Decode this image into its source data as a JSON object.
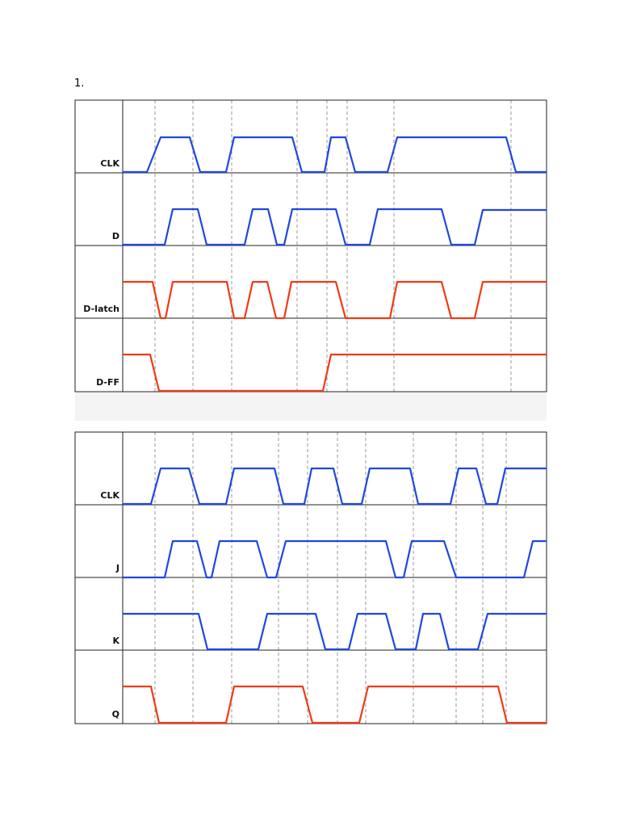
{
  "heading": "1.",
  "diagrams": [
    {
      "signals": [
        "CLK",
        "D",
        "D-latch",
        "D-FF"
      ]
    },
    {
      "signals": [
        "CLK",
        "J",
        "K",
        "Q"
      ]
    }
  ]
}
